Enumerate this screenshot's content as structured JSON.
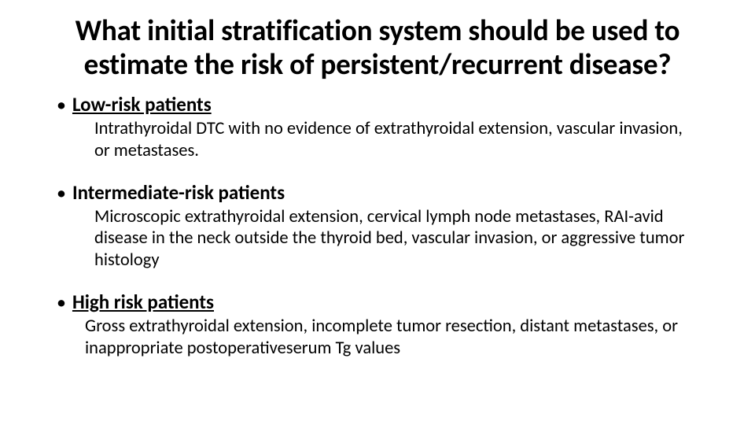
{
  "title": "What initial stratification system should be used to estimate the risk of persistent/recurrent disease?",
  "items": [
    {
      "heading": "Low-risk patients",
      "body": "Intrathyroidal DTC with no evidence of extrathyroidal extension, vascular invasion, or metastases."
    },
    {
      "heading": "Intermediate-risk patients",
      "body": "Microscopic extrathyroidal extension, cervical lymph node metastases, RAI-avid disease in the neck outside the thyroid bed, vascular invasion, or aggressive tumor histology"
    },
    {
      "heading": "High risk patients",
      "body": "Gross extrathyroidal extension, incomplete tumor resection, distant metastases, or inappropriate postoperativeserum Tg values"
    }
  ],
  "colors": {
    "background": "#ffffff",
    "text": "#000000"
  },
  "typography": {
    "title_fontsize_pt": 28,
    "heading_fontsize_pt": 19,
    "body_fontsize_pt": 17,
    "font_family": "Calibri"
  }
}
